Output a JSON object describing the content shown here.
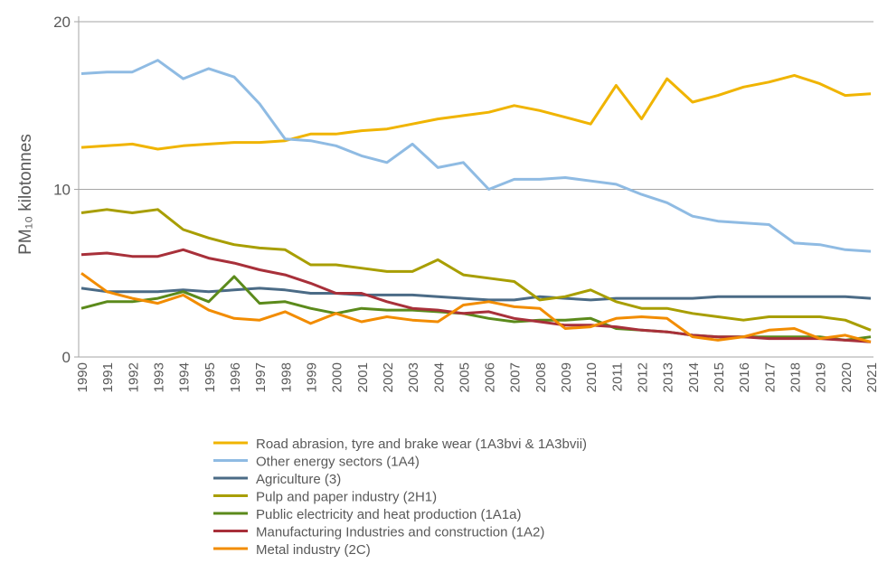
{
  "chart_data": {
    "type": "line",
    "ylabel": "PM₁₀ kilotonnes",
    "categories": [
      "1990",
      "1991",
      "1992",
      "1993",
      "1994",
      "1995",
      "1996",
      "1997",
      "1998",
      "1999",
      "2000",
      "2001",
      "2002",
      "2003",
      "2004",
      "2005",
      "2006",
      "2007",
      "2008",
      "2009",
      "2010",
      "2011",
      "2012",
      "2013",
      "2014",
      "2015",
      "2016",
      "2017",
      "2018",
      "2019",
      "2020",
      "2021"
    ],
    "ylim": [
      0,
      20
    ],
    "yticks": [
      0,
      10,
      20
    ],
    "grid": true,
    "series": [
      {
        "name": "Road abrasion, tyre and brake wear (1A3bvi & 1A3bvii)",
        "color": "#f0b400",
        "values": [
          12.5,
          12.6,
          12.7,
          12.4,
          12.6,
          12.7,
          12.8,
          12.8,
          12.9,
          13.3,
          13.3,
          13.5,
          13.6,
          13.9,
          14.2,
          14.4,
          14.6,
          15.0,
          14.7,
          14.3,
          13.9,
          16.2,
          14.2,
          16.6,
          15.2,
          15.6,
          16.1,
          16.4,
          16.8,
          16.3,
          15.6,
          15.7
        ]
      },
      {
        "name": "Other energy sectors (1A4)",
        "color": "#8fbbe3",
        "values": [
          16.9,
          17.0,
          17.0,
          17.7,
          16.6,
          17.2,
          16.7,
          15.1,
          13.0,
          12.9,
          12.6,
          12.0,
          11.6,
          12.7,
          11.3,
          11.6,
          10.0,
          10.6,
          10.6,
          10.7,
          10.5,
          10.3,
          9.7,
          9.2,
          8.4,
          8.1,
          8.0,
          7.9,
          6.8,
          6.7,
          6.4,
          6.3
        ]
      },
      {
        "name": "Agriculture (3)",
        "color": "#4b6b86",
        "values": [
          4.1,
          3.9,
          3.9,
          3.9,
          4.0,
          3.9,
          4.0,
          4.1,
          4.0,
          3.8,
          3.8,
          3.7,
          3.7,
          3.7,
          3.6,
          3.5,
          3.4,
          3.4,
          3.6,
          3.5,
          3.4,
          3.5,
          3.5,
          3.5,
          3.5,
          3.6,
          3.6,
          3.6,
          3.6,
          3.6,
          3.6,
          3.5
        ]
      },
      {
        "name": "Pulp and paper industry (2H1)",
        "color": "#a89e00",
        "values": [
          8.6,
          8.8,
          8.6,
          8.8,
          7.6,
          7.1,
          6.7,
          6.5,
          6.4,
          5.5,
          5.5,
          5.3,
          5.1,
          5.1,
          5.8,
          4.9,
          4.7,
          4.5,
          3.4,
          3.6,
          4.0,
          3.3,
          2.9,
          2.9,
          2.6,
          2.4,
          2.2,
          2.4,
          2.4,
          2.4,
          2.2,
          1.6
        ]
      },
      {
        "name": "Public electricity and heat production (1A1a)",
        "color": "#5b8a1b",
        "values": [
          2.9,
          3.3,
          3.3,
          3.5,
          3.9,
          3.3,
          4.8,
          3.2,
          3.3,
          2.9,
          2.6,
          2.9,
          2.8,
          2.8,
          2.7,
          2.6,
          2.3,
          2.1,
          2.2,
          2.2,
          2.3,
          1.7,
          1.6,
          1.5,
          1.3,
          1.2,
          1.2,
          1.2,
          1.2,
          1.2,
          1.0,
          1.2
        ]
      },
      {
        "name": "Manufacturing Industries and construction (1A2)",
        "color": "#a8303a",
        "values": [
          6.1,
          6.2,
          6.0,
          6.0,
          6.4,
          5.9,
          5.6,
          5.2,
          4.9,
          4.4,
          3.8,
          3.8,
          3.3,
          2.9,
          2.8,
          2.6,
          2.7,
          2.3,
          2.1,
          1.9,
          1.9,
          1.8,
          1.6,
          1.5,
          1.3,
          1.2,
          1.2,
          1.1,
          1.1,
          1.1,
          1.0,
          0.9
        ]
      },
      {
        "name": "Metal industry (2C)",
        "color": "#f28c00",
        "values": [
          5.0,
          3.9,
          3.5,
          3.2,
          3.7,
          2.8,
          2.3,
          2.2,
          2.7,
          2.0,
          2.6,
          2.1,
          2.4,
          2.2,
          2.1,
          3.1,
          3.3,
          3.0,
          2.9,
          1.7,
          1.8,
          2.3,
          2.4,
          2.3,
          1.2,
          1.0,
          1.2,
          1.6,
          1.7,
          1.1,
          1.3,
          0.9
        ]
      }
    ]
  }
}
